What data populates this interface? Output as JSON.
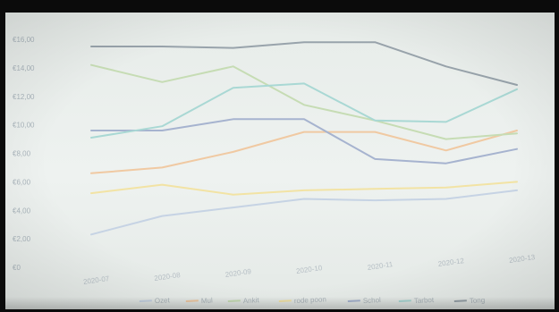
{
  "chart_data": {
    "type": "line",
    "title": "",
    "xlabel": "",
    "ylabel": "",
    "categories": [
      "2020-07",
      "2020-08",
      "2020-09",
      "2020-10",
      "2020-11",
      "2020-12",
      "2020-13"
    ],
    "y_ticks": [
      "€0",
      "€2,00",
      "€4,00",
      "€6,00",
      "€8,00",
      "€10,00",
      "€12,00",
      "€14,00",
      "€16,00"
    ],
    "ylim": [
      0,
      16
    ],
    "grid": false,
    "legend_position": "bottom",
    "series": [
      {
        "name": "Ozet",
        "color": "#c6d3e4",
        "values": [
          2.3,
          3.6,
          4.2,
          4.8,
          4.7,
          4.8,
          5.4
        ]
      },
      {
        "name": "Mul",
        "color": "#f0c9a2",
        "values": [
          6.6,
          7.0,
          8.1,
          9.5,
          9.5,
          8.2,
          9.6
        ]
      },
      {
        "name": "Ankit",
        "color": "#c6dcb4",
        "values": [
          14.2,
          13.0,
          14.1,
          11.4,
          10.3,
          9.0,
          9.4
        ]
      },
      {
        "name": "rode poon",
        "color": "#f2e3a4",
        "values": [
          5.2,
          5.8,
          5.1,
          5.4,
          5.5,
          5.6,
          6.0
        ]
      },
      {
        "name": "Schol",
        "color": "#a6b3cf",
        "values": [
          9.6,
          9.6,
          10.4,
          10.4,
          7.6,
          7.3,
          8.3
        ]
      },
      {
        "name": "Tarbot",
        "color": "#a9d8d4",
        "values": [
          9.1,
          9.9,
          12.6,
          12.9,
          10.3,
          10.2,
          12.5
        ]
      },
      {
        "name": "Tong",
        "color": "#98a3ab",
        "values": [
          15.5,
          15.5,
          15.4,
          15.8,
          15.8,
          14.1,
          12.8
        ]
      }
    ]
  }
}
